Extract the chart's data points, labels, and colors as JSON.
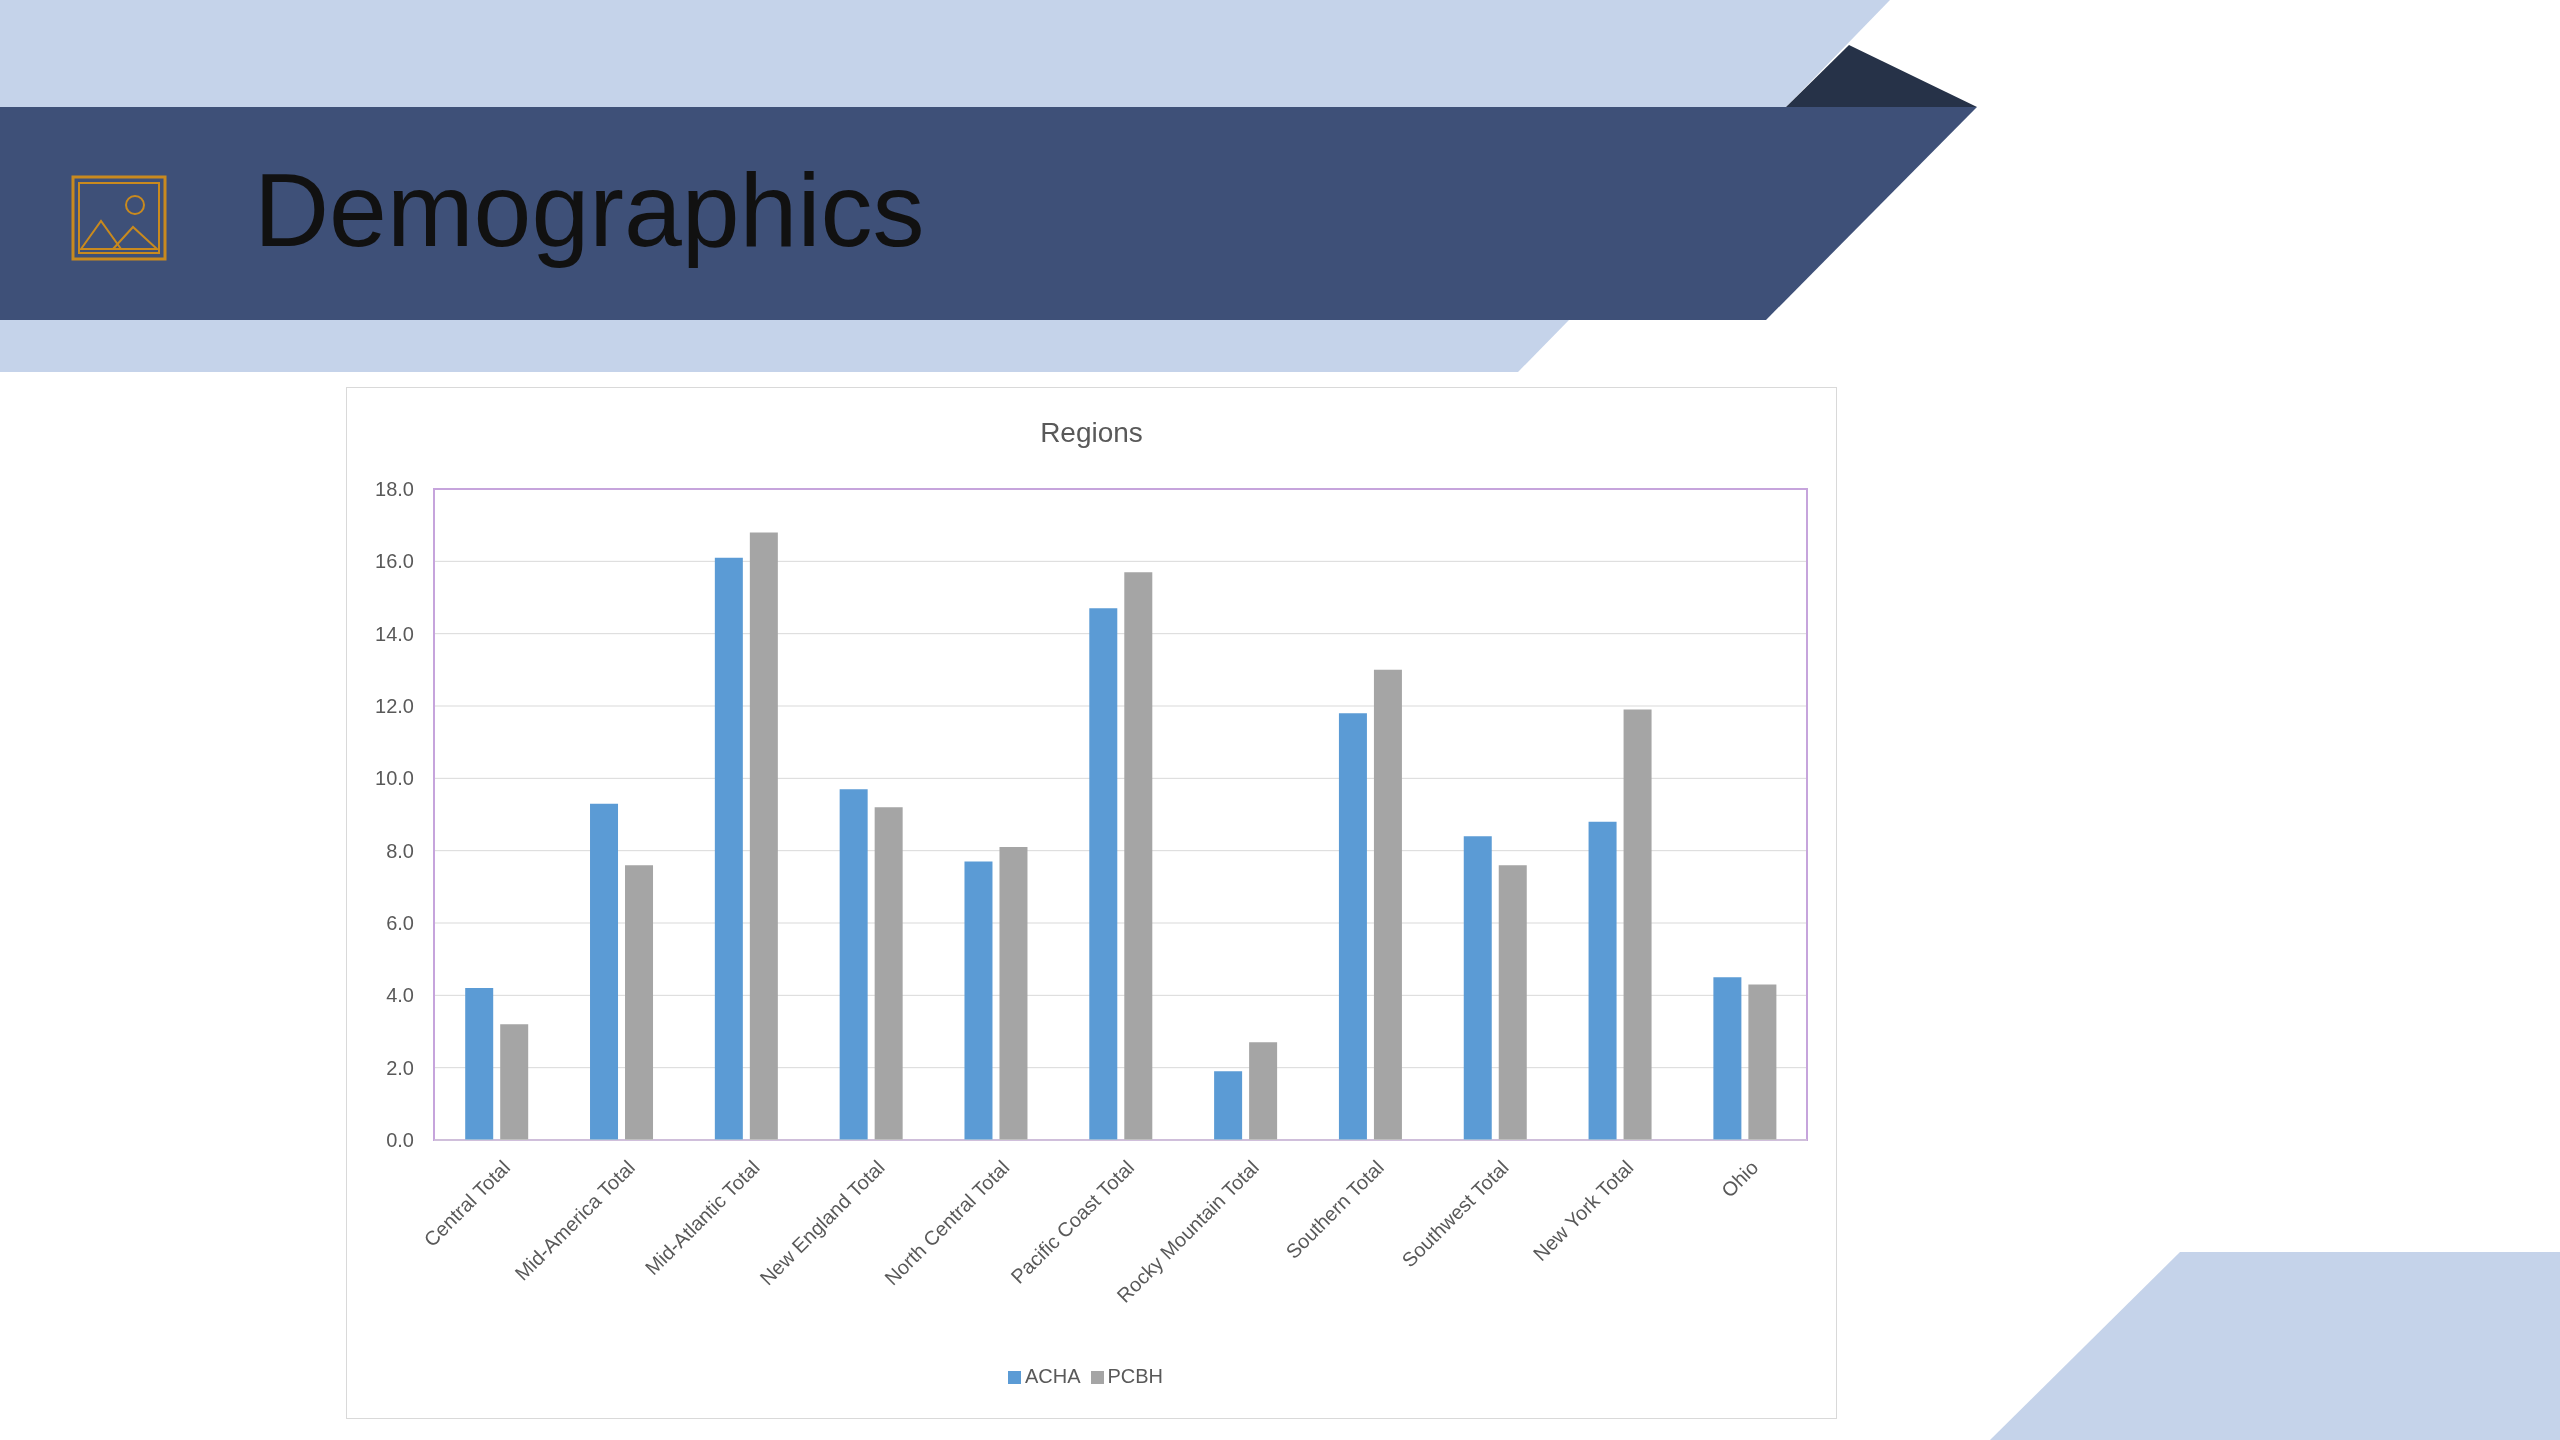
{
  "chart_data": {
    "type": "bar",
    "title": "Demographics",
    "subtitle": "Regions",
    "categories": [
      "Central Total",
      "Mid-America Total",
      "Mid-Atlantic Total",
      "New England Total",
      "North Central Total",
      "Pacific Coast Total",
      "Rocky Mountain Total",
      "Southern Total",
      "Southwest Total",
      "New York Total",
      "Ohio"
    ],
    "series": [
      {
        "name": "ACHA",
        "color": "#5b9bd5",
        "values": [
          4.2,
          9.3,
          16.1,
          9.7,
          7.7,
          14.7,
          1.9,
          11.8,
          8.4,
          8.8,
          4.5
        ]
      },
      {
        "name": "PCBH",
        "color": "#a5a5a5",
        "values": [
          3.2,
          7.6,
          16.8,
          9.2,
          8.1,
          15.7,
          2.7,
          13.0,
          7.6,
          11.9,
          4.3
        ]
      }
    ],
    "ylim": [
      0,
      18
    ],
    "yticks": [
      {
        "value": 0,
        "label": "0.0"
      },
      {
        "value": 2,
        "label": "2.0"
      },
      {
        "value": 4,
        "label": "4.0"
      },
      {
        "value": 6,
        "label": "6.0"
      },
      {
        "value": 8,
        "label": "8.0"
      },
      {
        "value": 10,
        "label": "10.0"
      },
      {
        "value": 12,
        "label": "12.0"
      },
      {
        "value": 14,
        "label": "14.0"
      },
      {
        "value": 16,
        "label": "16.0"
      },
      {
        "value": 18,
        "label": "18.0"
      }
    ],
    "grid": "y",
    "legend": "bottom"
  }
}
